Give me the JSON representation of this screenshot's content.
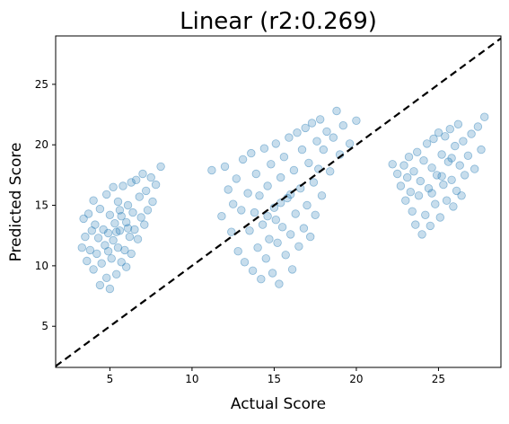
{
  "chart_data": {
    "type": "scatter",
    "title": "Linear (r2:0.269)",
    "xlabel": "Actual Score",
    "ylabel": "Predicted Score",
    "xlim": [
      1.7,
      28.8
    ],
    "ylim": [
      1.6,
      29.0
    ],
    "xticks": [
      5,
      10,
      15,
      20,
      25
    ],
    "yticks": [
      5,
      10,
      15,
      20,
      25
    ],
    "grid": false,
    "legend": "none",
    "point_color": "#1f77b4",
    "point_alpha": 0.25,
    "reference_line": {
      "style": "dashed",
      "color": "#000000",
      "from": [
        1.7,
        1.7
      ],
      "to": [
        28.8,
        28.8
      ]
    },
    "series": [
      {
        "points": [
          [
            3.3,
            11.5
          ],
          [
            3.4,
            13.9
          ],
          [
            3.5,
            12.4
          ],
          [
            3.6,
            10.4
          ],
          [
            3.7,
            14.3
          ],
          [
            3.8,
            11.3
          ],
          [
            3.9,
            12.9
          ],
          [
            4.0,
            9.7
          ],
          [
            4.0,
            15.4
          ],
          [
            4.1,
            13.4
          ],
          [
            4.2,
            11.0
          ],
          [
            4.3,
            12.3
          ],
          [
            4.4,
            8.4
          ],
          [
            4.4,
            14.7
          ],
          [
            4.5,
            10.2
          ],
          [
            4.6,
            13.0
          ],
          [
            4.7,
            11.7
          ],
          [
            4.8,
            15.9
          ],
          [
            4.8,
            9.0
          ],
          [
            4.9,
            12.7
          ],
          [
            5.0,
            8.1
          ],
          [
            5.0,
            14.2
          ],
          [
            5.1,
            10.6
          ],
          [
            5.2,
            12.1
          ],
          [
            5.2,
            16.5
          ],
          [
            5.3,
            13.5
          ],
          [
            5.4,
            9.3
          ],
          [
            5.5,
            11.5
          ],
          [
            5.5,
            15.3
          ],
          [
            5.6,
            12.9
          ],
          [
            5.7,
            10.3
          ],
          [
            5.7,
            14.1
          ],
          [
            5.8,
            16.6
          ],
          [
            5.9,
            11.3
          ],
          [
            6.0,
            13.6
          ],
          [
            6.0,
            9.9
          ],
          [
            6.1,
            15.0
          ],
          [
            6.2,
            12.4
          ],
          [
            6.3,
            16.9
          ],
          [
            6.3,
            11.0
          ],
          [
            6.4,
            14.4
          ],
          [
            6.5,
            13.0
          ],
          [
            6.6,
            17.1
          ],
          [
            6.7,
            12.2
          ],
          [
            6.8,
            15.7
          ],
          [
            6.9,
            14.0
          ],
          [
            7.0,
            17.6
          ],
          [
            7.1,
            13.4
          ],
          [
            7.2,
            16.2
          ],
          [
            7.3,
            14.6
          ],
          [
            7.5,
            17.3
          ],
          [
            7.6,
            15.3
          ],
          [
            7.8,
            16.7
          ],
          [
            8.1,
            18.2
          ],
          [
            5.4,
            12.8
          ],
          [
            4.9,
            11.2
          ],
          [
            6.1,
            13.1
          ],
          [
            5.6,
            14.6
          ]
        ]
      },
      {
        "points": [
          [
            11.2,
            17.9
          ],
          [
            11.8,
            14.1
          ],
          [
            12.0,
            18.2
          ],
          [
            12.2,
            16.3
          ],
          [
            12.4,
            12.8
          ],
          [
            12.5,
            15.1
          ],
          [
            12.7,
            17.2
          ],
          [
            12.8,
            11.2
          ],
          [
            13.0,
            14.6
          ],
          [
            13.1,
            18.8
          ],
          [
            13.2,
            10.3
          ],
          [
            13.4,
            16.0
          ],
          [
            13.5,
            12.9
          ],
          [
            13.6,
            19.3
          ],
          [
            13.7,
            9.6
          ],
          [
            13.8,
            14.4
          ],
          [
            13.9,
            17.6
          ],
          [
            14.0,
            11.5
          ],
          [
            14.1,
            15.8
          ],
          [
            14.2,
            8.9
          ],
          [
            14.3,
            13.4
          ],
          [
            14.4,
            19.7
          ],
          [
            14.5,
            10.6
          ],
          [
            14.6,
            16.6
          ],
          [
            14.7,
            12.2
          ],
          [
            14.8,
            18.4
          ],
          [
            14.9,
            9.4
          ],
          [
            15.0,
            14.8
          ],
          [
            15.1,
            20.1
          ],
          [
            15.2,
            11.9
          ],
          [
            15.3,
            8.5
          ],
          [
            15.4,
            17.3
          ],
          [
            15.5,
            13.2
          ],
          [
            15.6,
            19.0
          ],
          [
            15.7,
            10.9
          ],
          [
            15.8,
            15.6
          ],
          [
            15.9,
            20.6
          ],
          [
            16.0,
            12.6
          ],
          [
            16.1,
            9.7
          ],
          [
            16.2,
            17.9
          ],
          [
            16.3,
            14.3
          ],
          [
            16.4,
            21.0
          ],
          [
            16.5,
            11.6
          ],
          [
            16.6,
            16.4
          ],
          [
            16.7,
            19.6
          ],
          [
            16.8,
            13.1
          ],
          [
            16.9,
            21.4
          ],
          [
            17.0,
            15.0
          ],
          [
            17.1,
            18.5
          ],
          [
            17.2,
            12.4
          ],
          [
            17.3,
            21.8
          ],
          [
            17.4,
            16.9
          ],
          [
            17.5,
            14.2
          ],
          [
            17.6,
            20.3
          ],
          [
            17.7,
            18.0
          ],
          [
            17.8,
            22.1
          ],
          [
            17.9,
            15.8
          ],
          [
            18.0,
            19.6
          ],
          [
            18.2,
            21.1
          ],
          [
            18.4,
            17.8
          ],
          [
            18.6,
            20.6
          ],
          [
            18.8,
            22.8
          ],
          [
            19.0,
            19.2
          ],
          [
            19.2,
            21.6
          ],
          [
            19.6,
            20.1
          ],
          [
            20.0,
            22.0
          ],
          [
            14.6,
            14.1
          ],
          [
            15.4,
            15.2
          ],
          [
            16.0,
            15.9
          ],
          [
            15.1,
            13.8
          ]
        ]
      },
      {
        "points": [
          [
            22.2,
            18.4
          ],
          [
            22.5,
            17.6
          ],
          [
            22.7,
            16.6
          ],
          [
            22.9,
            18.3
          ],
          [
            23.0,
            15.4
          ],
          [
            23.1,
            17.3
          ],
          [
            23.2,
            19.0
          ],
          [
            23.3,
            16.1
          ],
          [
            23.4,
            14.5
          ],
          [
            23.5,
            17.8
          ],
          [
            23.6,
            13.4
          ],
          [
            23.7,
            19.4
          ],
          [
            23.8,
            15.8
          ],
          [
            23.9,
            17.0
          ],
          [
            24.0,
            12.6
          ],
          [
            24.1,
            18.7
          ],
          [
            24.2,
            14.2
          ],
          [
            24.3,
            20.1
          ],
          [
            24.4,
            16.4
          ],
          [
            24.5,
            13.3
          ],
          [
            24.6,
            18.1
          ],
          [
            24.7,
            20.5
          ],
          [
            24.8,
            15.1
          ],
          [
            24.9,
            17.5
          ],
          [
            25.0,
            21.0
          ],
          [
            25.1,
            14.0
          ],
          [
            25.2,
            19.2
          ],
          [
            25.3,
            16.7
          ],
          [
            25.4,
            20.7
          ],
          [
            25.5,
            15.4
          ],
          [
            25.6,
            18.6
          ],
          [
            25.7,
            21.3
          ],
          [
            25.8,
            17.1
          ],
          [
            25.9,
            14.9
          ],
          [
            26.0,
            19.9
          ],
          [
            26.1,
            16.2
          ],
          [
            26.2,
            21.7
          ],
          [
            26.3,
            18.3
          ],
          [
            26.4,
            15.8
          ],
          [
            26.5,
            20.3
          ],
          [
            26.6,
            17.5
          ],
          [
            26.8,
            19.1
          ],
          [
            27.0,
            20.9
          ],
          [
            27.2,
            18.0
          ],
          [
            27.4,
            21.5
          ],
          [
            27.6,
            19.6
          ],
          [
            27.8,
            22.3
          ],
          [
            25.2,
            17.4
          ],
          [
            24.6,
            16.0
          ],
          [
            25.8,
            18.9
          ]
        ]
      }
    ]
  }
}
